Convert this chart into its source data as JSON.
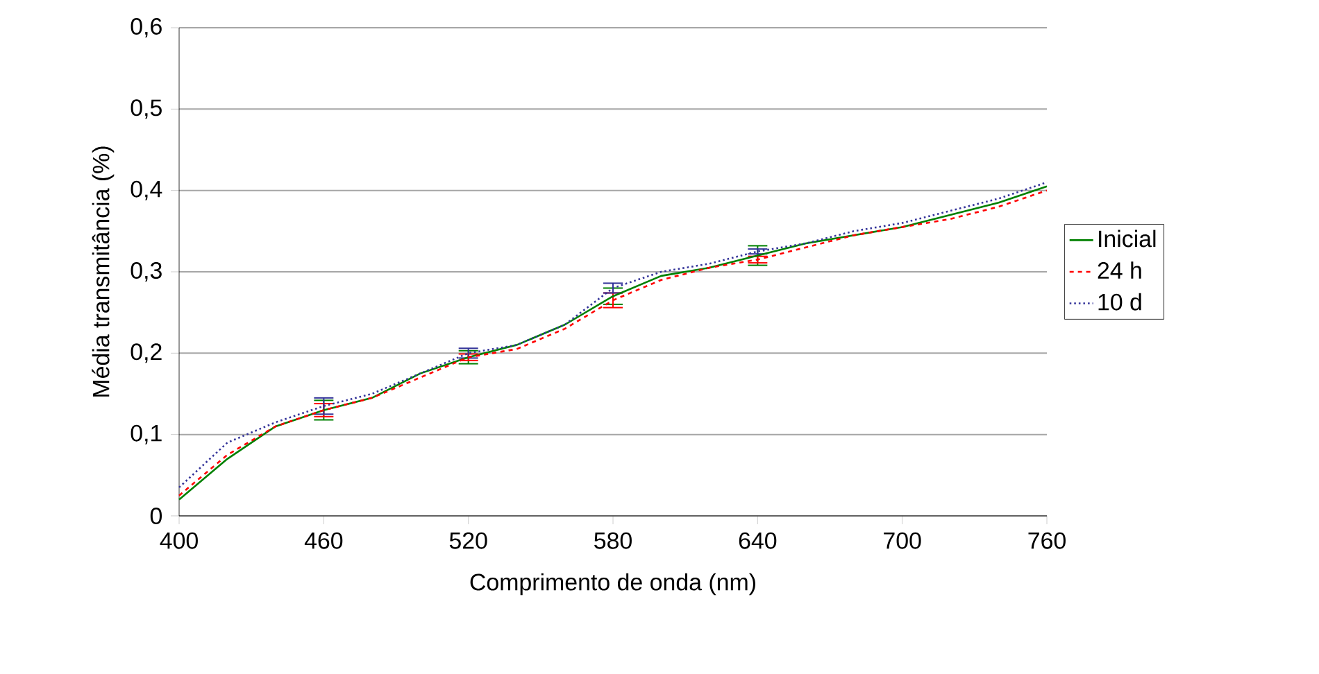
{
  "chart_data": {
    "type": "line",
    "xlabel": "Comprimento de onda (nm)",
    "ylabel": "Média transmitância (%)",
    "xlim": [
      400,
      760
    ],
    "xticks": [
      400,
      460,
      520,
      580,
      640,
      700,
      760
    ],
    "ylim": [
      0,
      0.6
    ],
    "yticks": [
      {
        "value": 0,
        "label": "0"
      },
      {
        "value": 0.1,
        "label": "0,1"
      },
      {
        "value": 0.2,
        "label": "0,2"
      },
      {
        "value": 0.3,
        "label": "0,3"
      },
      {
        "value": 0.4,
        "label": "0,4"
      },
      {
        "value": 0.5,
        "label": "0,5"
      },
      {
        "value": 0.6,
        "label": "0,6"
      }
    ],
    "grid": "y",
    "legend": "right",
    "marker": "none",
    "x": [
      400,
      420,
      440,
      460,
      480,
      500,
      520,
      540,
      560,
      580,
      600,
      620,
      640,
      660,
      680,
      700,
      720,
      740,
      760
    ],
    "series": [
      {
        "name": "Inicial",
        "color": "#008000",
        "line_style": "solid",
        "values": [
          0.02,
          0.07,
          0.11,
          0.13,
          0.145,
          0.175,
          0.195,
          0.21,
          0.235,
          0.27,
          0.295,
          0.305,
          0.32,
          0.335,
          0.345,
          0.355,
          0.37,
          0.385,
          0.405
        ],
        "errors": [
          null,
          null,
          null,
          0.012,
          null,
          null,
          0.008,
          null,
          null,
          0.01,
          null,
          null,
          0.012,
          null,
          null,
          null,
          null,
          null,
          null
        ]
      },
      {
        "name": "24 h",
        "color": "#ff0000",
        "line_style": "dashed",
        "values": [
          0.025,
          0.075,
          0.11,
          0.13,
          0.145,
          0.17,
          0.195,
          0.205,
          0.23,
          0.265,
          0.29,
          0.305,
          0.315,
          0.33,
          0.345,
          0.355,
          0.365,
          0.38,
          0.4
        ],
        "errors": [
          null,
          null,
          null,
          0.008,
          null,
          null,
          0.004,
          null,
          null,
          0.009,
          null,
          null,
          0.004,
          null,
          null,
          null,
          null,
          null,
          null
        ]
      },
      {
        "name": "10 d",
        "color": "#333399",
        "line_style": "dotted",
        "values": [
          0.035,
          0.09,
          0.115,
          0.135,
          0.15,
          0.175,
          0.2,
          0.21,
          0.235,
          0.28,
          0.3,
          0.31,
          0.325,
          0.335,
          0.35,
          0.36,
          0.375,
          0.39,
          0.41
        ],
        "errors": [
          null,
          null,
          null,
          0.01,
          null,
          null,
          0.006,
          null,
          null,
          0.006,
          null,
          null,
          0.003,
          null,
          null,
          null,
          null,
          null,
          null
        ]
      }
    ]
  }
}
